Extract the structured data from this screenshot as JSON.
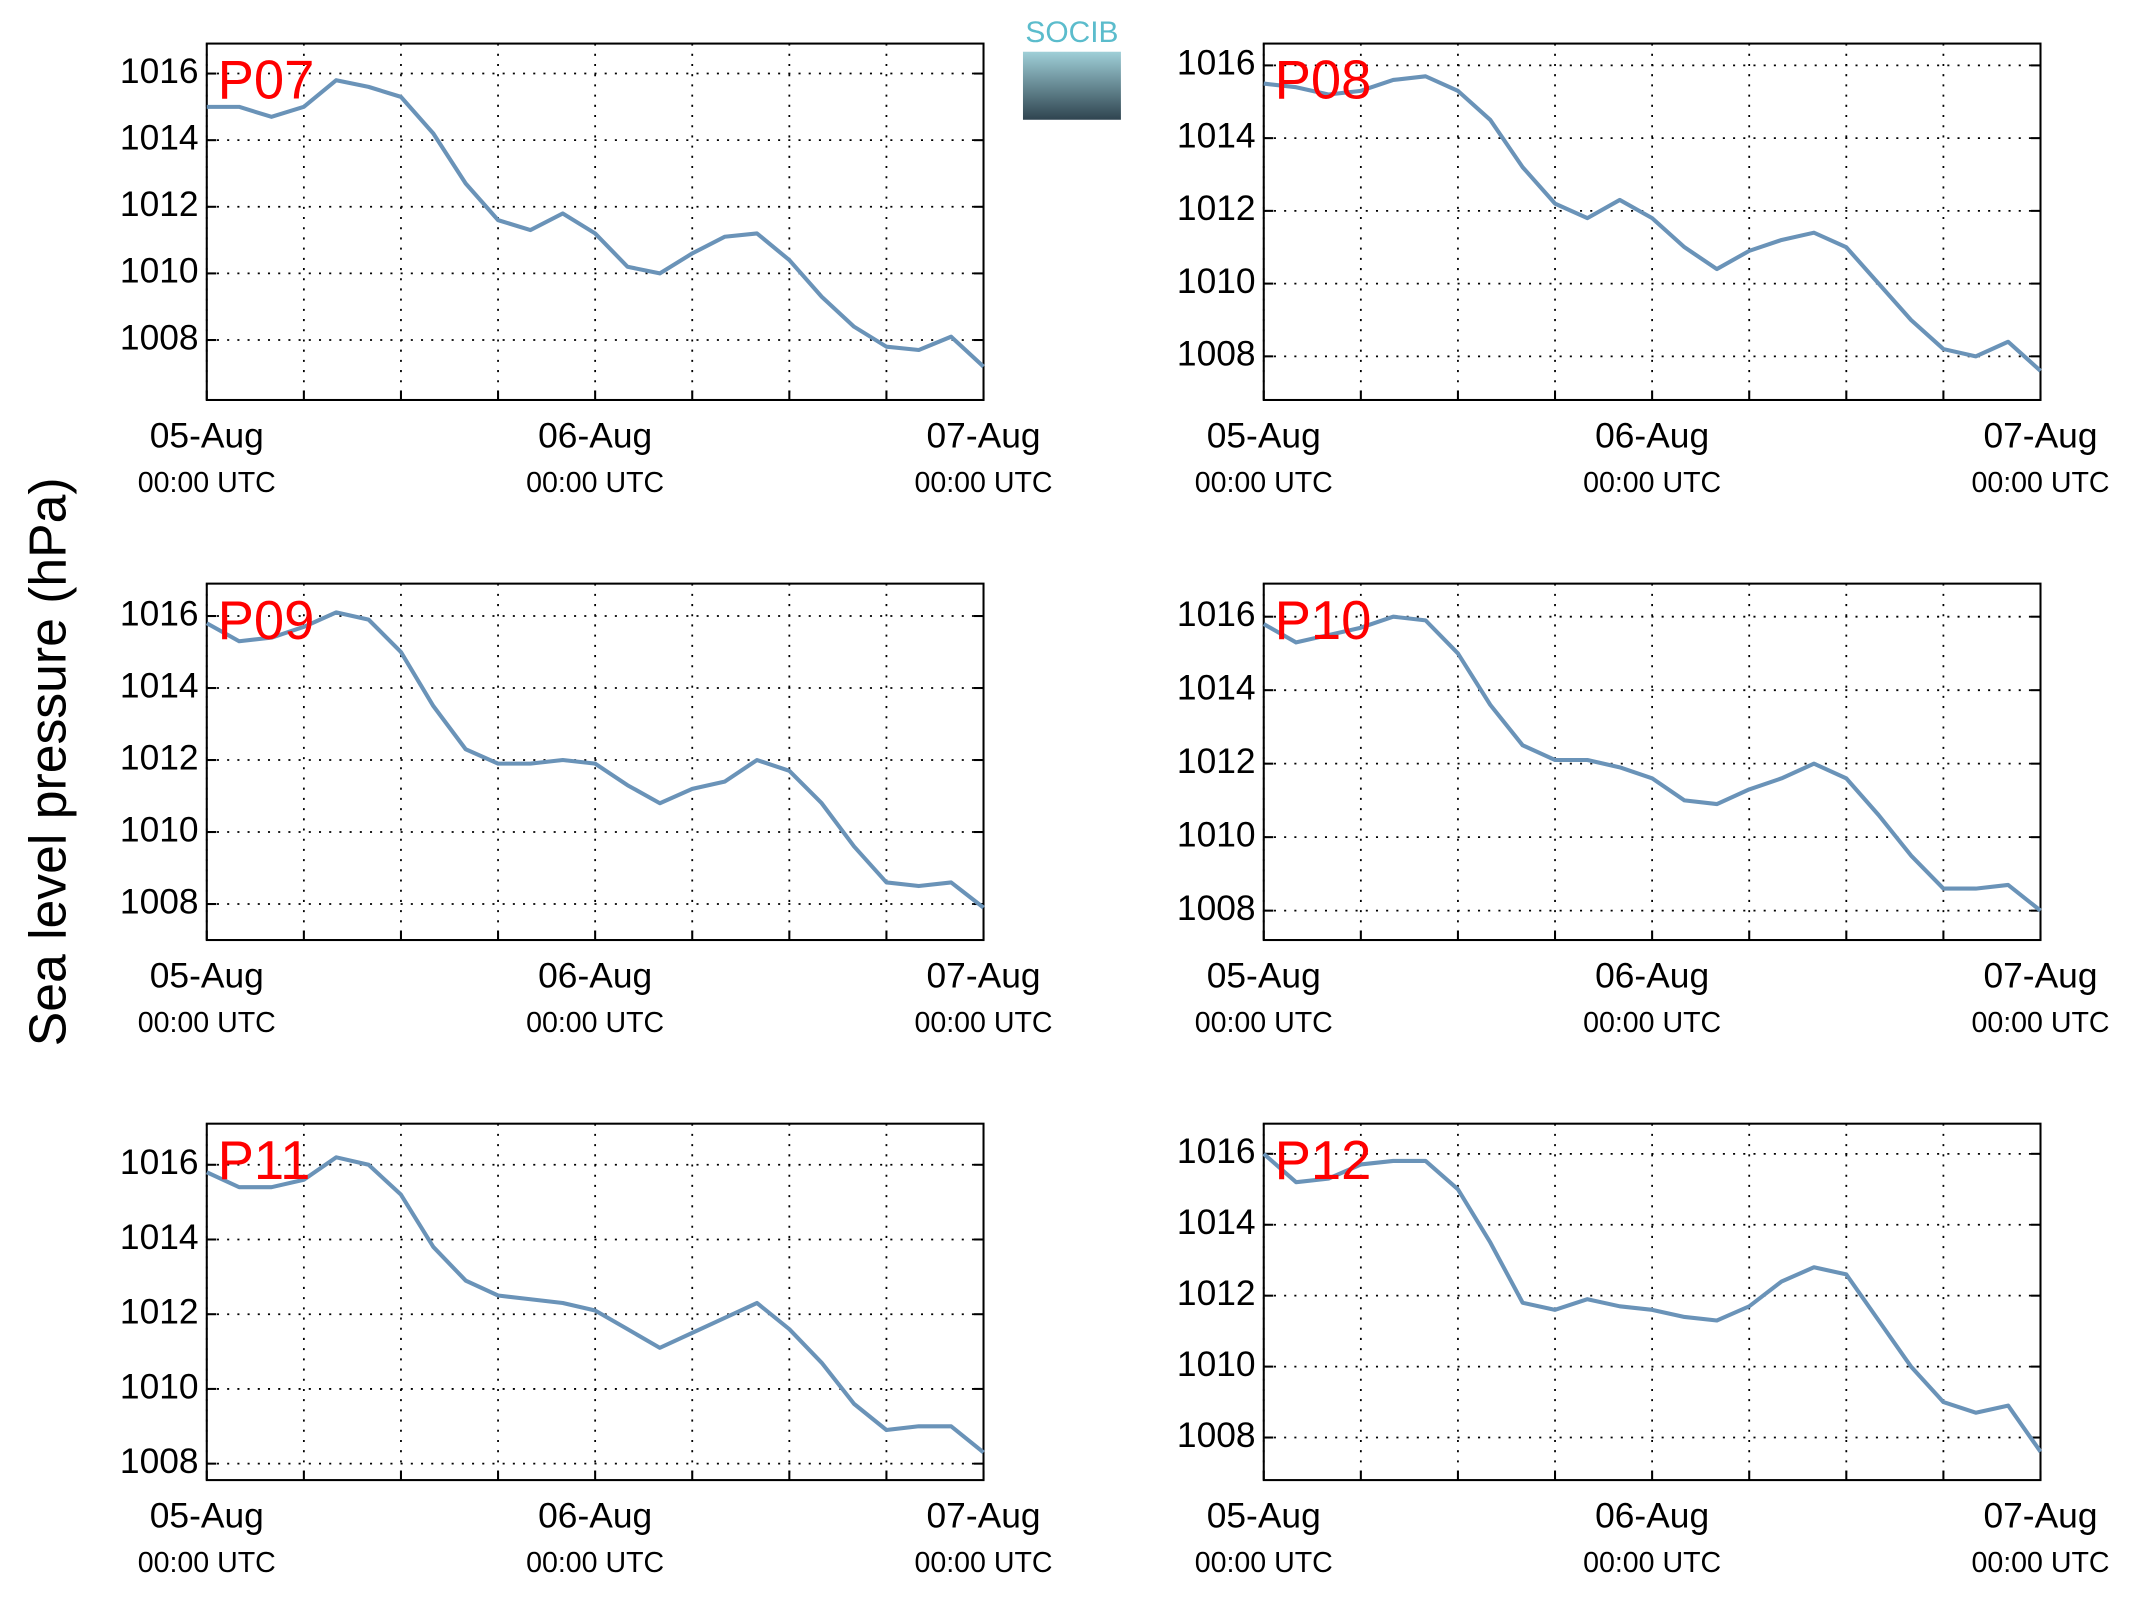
{
  "ylabel": "Sea level pressure (hPa)",
  "logo": "SOCIB",
  "chart_data": [
    {
      "type": "line",
      "title": "P07",
      "x": [
        0,
        2,
        4,
        6,
        8,
        10,
        12,
        14,
        16,
        18,
        20,
        22,
        24,
        26,
        28,
        30,
        32,
        34,
        36,
        38,
        40,
        42,
        44,
        46,
        48
      ],
      "series": [
        {
          "name": "P07",
          "color": "#6a93b8",
          "values": [
            1015.0,
            1015.0,
            1014.7,
            1015.0,
            1015.8,
            1015.6,
            1015.3,
            1014.2,
            1012.7,
            1011.6,
            1011.3,
            1011.8,
            1011.2,
            1010.2,
            1010.0,
            1010.6,
            1011.1,
            1011.2,
            1010.4,
            1009.3,
            1008.4,
            1007.8,
            1007.7,
            1008.1,
            1007.2
          ]
        }
      ],
      "xlim": [
        0,
        48
      ],
      "xticks": [
        {
          "value": 0,
          "label": "05-Aug",
          "sublabel": "00:00 UTC"
        },
        {
          "value": 24,
          "label": "06-Aug",
          "sublabel": "00:00 UTC"
        },
        {
          "value": 48,
          "label": "07-Aug",
          "sublabel": "00:00 UTC"
        }
      ],
      "xminorticks": [
        6,
        12,
        18,
        30,
        36,
        42
      ],
      "ylim": [
        1006.2,
        1016.9
      ],
      "yticks": [
        1008,
        1010,
        1012,
        1014,
        1016
      ],
      "grid": true
    },
    {
      "type": "line",
      "title": "P08",
      "x": [
        0,
        2,
        4,
        6,
        8,
        10,
        12,
        14,
        16,
        18,
        20,
        22,
        24,
        26,
        28,
        30,
        32,
        34,
        36,
        38,
        40,
        42,
        44,
        46,
        48
      ],
      "series": [
        {
          "name": "P08",
          "color": "#6a93b8",
          "values": [
            1015.5,
            1015.4,
            1015.2,
            1015.3,
            1015.6,
            1015.7,
            1015.3,
            1014.5,
            1013.2,
            1012.2,
            1011.8,
            1012.3,
            1011.8,
            1011.0,
            1010.4,
            1010.9,
            1011.2,
            1011.4,
            1011.0,
            1010.0,
            1009.0,
            1008.2,
            1008.0,
            1008.4,
            1007.6
          ]
        }
      ],
      "xlim": [
        0,
        48
      ],
      "xticks": [
        {
          "value": 0,
          "label": "05-Aug",
          "sublabel": "00:00 UTC"
        },
        {
          "value": 24,
          "label": "06-Aug",
          "sublabel": "00:00 UTC"
        },
        {
          "value": 48,
          "label": "07-Aug",
          "sublabel": "00:00 UTC"
        }
      ],
      "xminorticks": [
        6,
        12,
        18,
        30,
        36,
        42
      ],
      "ylim": [
        1006.8,
        1016.6
      ],
      "yticks": [
        1008,
        1010,
        1012,
        1014,
        1016
      ],
      "grid": true
    },
    {
      "type": "line",
      "title": "P09",
      "x": [
        0,
        2,
        4,
        6,
        8,
        10,
        12,
        14,
        16,
        18,
        20,
        22,
        24,
        26,
        28,
        30,
        32,
        34,
        36,
        38,
        40,
        42,
        44,
        46,
        48
      ],
      "series": [
        {
          "name": "P09",
          "color": "#6a93b8",
          "values": [
            1015.8,
            1015.3,
            1015.4,
            1015.7,
            1016.1,
            1015.9,
            1015.0,
            1013.5,
            1012.3,
            1011.9,
            1011.9,
            1012.0,
            1011.9,
            1011.3,
            1010.8,
            1011.2,
            1011.4,
            1012.0,
            1011.7,
            1010.8,
            1009.6,
            1008.6,
            1008.5,
            1008.6,
            1007.9
          ]
        }
      ],
      "xlim": [
        0,
        48
      ],
      "xticks": [
        {
          "value": 0,
          "label": "05-Aug",
          "sublabel": "00:00 UTC"
        },
        {
          "value": 24,
          "label": "06-Aug",
          "sublabel": "00:00 UTC"
        },
        {
          "value": 48,
          "label": "07-Aug",
          "sublabel": "00:00 UTC"
        }
      ],
      "xminorticks": [
        6,
        12,
        18,
        30,
        36,
        42
      ],
      "ylim": [
        1007.0,
        1016.9
      ],
      "yticks": [
        1008,
        1010,
        1012,
        1014,
        1016
      ],
      "grid": true
    },
    {
      "type": "line",
      "title": "P10",
      "x": [
        0,
        2,
        4,
        6,
        8,
        10,
        12,
        14,
        16,
        18,
        20,
        22,
        24,
        26,
        28,
        30,
        32,
        34,
        36,
        38,
        40,
        42,
        44,
        46,
        48
      ],
      "series": [
        {
          "name": "P10",
          "color": "#6a93b8",
          "values": [
            1015.8,
            1015.3,
            1015.5,
            1015.7,
            1016.0,
            1015.9,
            1015.0,
            1013.6,
            1012.5,
            1012.1,
            1012.1,
            1011.9,
            1011.6,
            1011.0,
            1010.9,
            1011.3,
            1011.6,
            1012.0,
            1011.6,
            1010.6,
            1009.5,
            1008.6,
            1008.6,
            1008.7,
            1008.0
          ]
        }
      ],
      "xlim": [
        0,
        48
      ],
      "xticks": [
        {
          "value": 0,
          "label": "05-Aug",
          "sublabel": "00:00 UTC"
        },
        {
          "value": 24,
          "label": "06-Aug",
          "sublabel": "00:00 UTC"
        },
        {
          "value": 48,
          "label": "07-Aug",
          "sublabel": "00:00 UTC"
        }
      ],
      "xminorticks": [
        6,
        12,
        18,
        30,
        36,
        42
      ],
      "ylim": [
        1007.2,
        1016.9
      ],
      "yticks": [
        1008,
        1010,
        1012,
        1014,
        1016
      ],
      "grid": true
    },
    {
      "type": "line",
      "title": "P11",
      "x": [
        0,
        2,
        4,
        6,
        8,
        10,
        12,
        14,
        16,
        18,
        20,
        22,
        24,
        26,
        28,
        30,
        32,
        34,
        36,
        38,
        40,
        42,
        44,
        46,
        48
      ],
      "series": [
        {
          "name": "P11",
          "color": "#6a93b8",
          "values": [
            1015.8,
            1015.4,
            1015.4,
            1015.6,
            1016.2,
            1016.0,
            1015.2,
            1013.8,
            1012.9,
            1012.5,
            1012.4,
            1012.3,
            1012.1,
            1011.6,
            1011.1,
            1011.5,
            1011.9,
            1012.3,
            1011.6,
            1010.7,
            1009.6,
            1008.9,
            1009.0,
            1009.0,
            1008.3
          ]
        }
      ],
      "xlim": [
        0,
        48
      ],
      "xticks": [
        {
          "value": 0,
          "label": "05-Aug",
          "sublabel": "00:00 UTC"
        },
        {
          "value": 24,
          "label": "06-Aug",
          "sublabel": "00:00 UTC"
        },
        {
          "value": 48,
          "label": "07-Aug",
          "sublabel": "00:00 UTC"
        }
      ],
      "xminorticks": [
        6,
        12,
        18,
        30,
        36,
        42
      ],
      "ylim": [
        1007.56,
        1017.1
      ],
      "yticks": [
        1008,
        1010,
        1012,
        1014,
        1016
      ],
      "grid": true
    },
    {
      "type": "line",
      "title": "P12",
      "x": [
        0,
        2,
        4,
        6,
        8,
        10,
        12,
        14,
        16,
        18,
        20,
        22,
        24,
        26,
        28,
        30,
        32,
        34,
        36,
        38,
        40,
        42,
        44,
        46,
        48
      ],
      "series": [
        {
          "name": "P12",
          "color": "#6a93b8",
          "values": [
            1016.0,
            1015.2,
            1015.3,
            1015.7,
            1015.8,
            1015.8,
            1015.0,
            1013.5,
            1011.8,
            1011.6,
            1011.9,
            1011.7,
            1011.6,
            1011.4,
            1011.3,
            1011.7,
            1012.4,
            1012.8,
            1012.6,
            1011.3,
            1010.0,
            1009.0,
            1008.7,
            1008.9,
            1007.6
          ]
        }
      ],
      "xlim": [
        0,
        48
      ],
      "xticks": [
        {
          "value": 0,
          "label": "05-Aug",
          "sublabel": "00:00 UTC"
        },
        {
          "value": 24,
          "label": "06-Aug",
          "sublabel": "00:00 UTC"
        },
        {
          "value": 48,
          "label": "07-Aug",
          "sublabel": "00:00 UTC"
        }
      ],
      "xminorticks": [
        6,
        12,
        18,
        30,
        36,
        42
      ],
      "ylim": [
        1006.8,
        1016.85
      ],
      "yticks": [
        1008,
        1010,
        1012,
        1014,
        1016
      ],
      "grid": true
    }
  ]
}
